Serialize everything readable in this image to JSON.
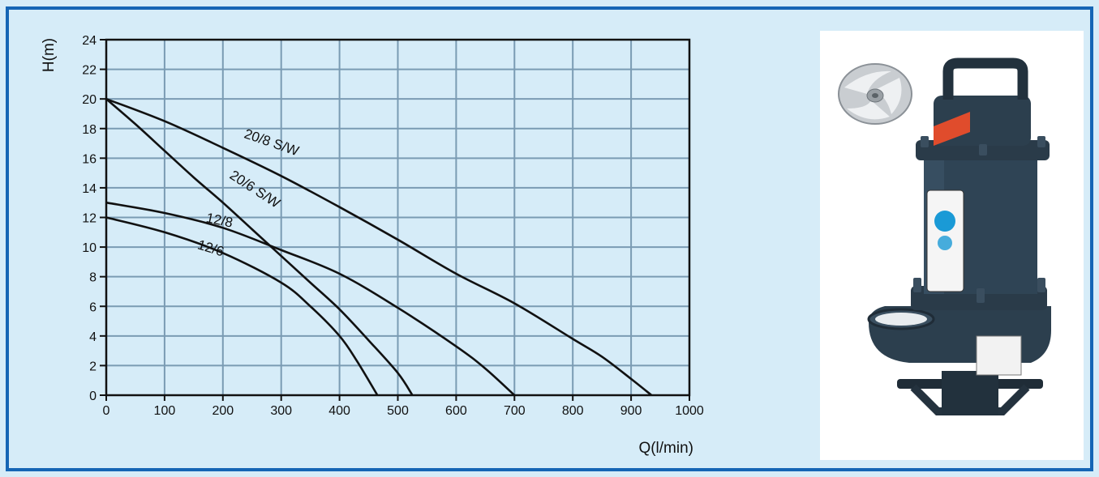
{
  "chart_data": {
    "type": "line",
    "xlabel": "Q(l/min)",
    "ylabel": "H(m)",
    "xlim": [
      0,
      1000
    ],
    "ylim": [
      0,
      24
    ],
    "x_ticks": [
      0,
      100,
      200,
      300,
      400,
      500,
      600,
      700,
      800,
      900,
      1000
    ],
    "y_ticks": [
      0,
      2,
      4,
      6,
      8,
      10,
      12,
      14,
      16,
      18,
      20,
      22,
      24
    ],
    "grid": true,
    "series": [
      {
        "name": "20/8 S/W",
        "points": [
          [
            0,
            20
          ],
          [
            100,
            18.5
          ],
          [
            200,
            16.7
          ],
          [
            300,
            14.8
          ],
          [
            400,
            12.7
          ],
          [
            500,
            10.5
          ],
          [
            600,
            8.2
          ],
          [
            700,
            6.2
          ],
          [
            800,
            3.8
          ],
          [
            850,
            2.6
          ],
          [
            900,
            1.1
          ],
          [
            935,
            0
          ]
        ]
      },
      {
        "name": "20/6 S/W",
        "points": [
          [
            0,
            20
          ],
          [
            50,
            18.3
          ],
          [
            100,
            16.5
          ],
          [
            150,
            14.7
          ],
          [
            200,
            13.0
          ],
          [
            250,
            11.2
          ],
          [
            300,
            9.4
          ],
          [
            350,
            7.6
          ],
          [
            400,
            5.8
          ],
          [
            450,
            3.7
          ],
          [
            500,
            1.5
          ],
          [
            525,
            0
          ]
        ]
      },
      {
        "name": "12/8",
        "points": [
          [
            0,
            13
          ],
          [
            100,
            12.3
          ],
          [
            200,
            11.3
          ],
          [
            300,
            9.8
          ],
          [
            400,
            8.2
          ],
          [
            500,
            5.9
          ],
          [
            600,
            3.3
          ],
          [
            650,
            1.8
          ],
          [
            700,
            0
          ]
        ]
      },
      {
        "name": "12/6",
        "points": [
          [
            0,
            12
          ],
          [
            100,
            11.0
          ],
          [
            200,
            9.6
          ],
          [
            300,
            7.6
          ],
          [
            350,
            6.0
          ],
          [
            400,
            4.0
          ],
          [
            430,
            2.3
          ],
          [
            465,
            0
          ]
        ]
      }
    ],
    "series_label_positions": [
      {
        "series": "20/8 S/W",
        "at": [
          235,
          17.4
        ]
      },
      {
        "series": "20/6 S/W",
        "at": [
          210,
          14.7
        ]
      },
      {
        "series": "12/8",
        "at": [
          170,
          11.7
        ]
      },
      {
        "series": "12/6",
        "at": [
          155,
          9.9
        ]
      }
    ]
  },
  "colors": {
    "background": "#d6ecf8",
    "frame_border": "#1565b5",
    "grid": "#7a9bb3",
    "curve": "#111111",
    "pump_body": "#2c3f4e"
  },
  "image": {
    "pump_photo": "submersible-pump-photo",
    "impeller_photo": "impeller-icon"
  }
}
